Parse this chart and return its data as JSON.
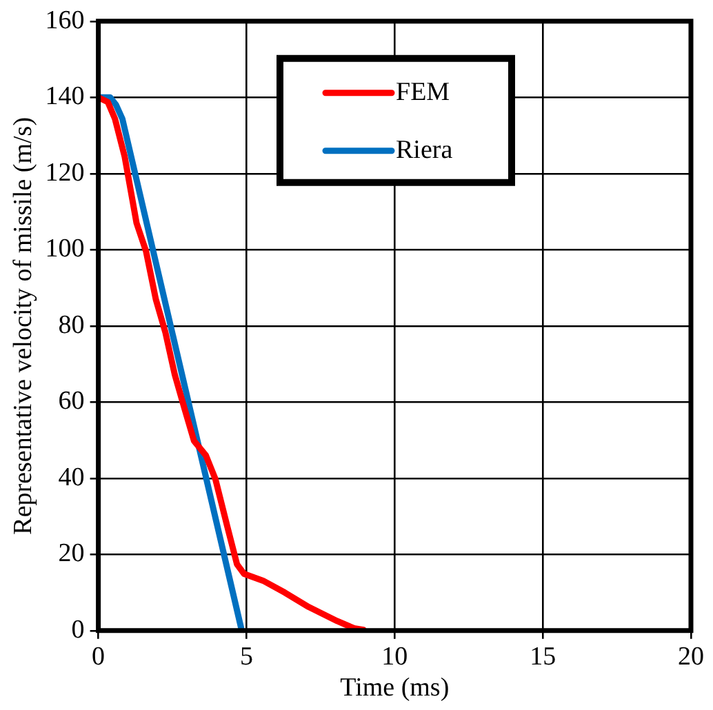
{
  "chart_data": {
    "type": "line",
    "xlabel": "Time (ms)",
    "ylabel": "Representative velocity of missile (m/s)",
    "xlim": [
      0,
      20
    ],
    "xticks": [
      0,
      5,
      10,
      15,
      20
    ],
    "ylim": [
      0,
      160
    ],
    "yticks": [
      0,
      20,
      40,
      60,
      80,
      100,
      120,
      140,
      160
    ],
    "grid": true,
    "legend": "top right",
    "marker": "none",
    "line_style": "solid",
    "series": [
      {
        "name": "FEM",
        "color": "#ff0000",
        "x": [
          0,
          0.32,
          0.56,
          0.89,
          1.29,
          1.61,
          1.94,
          2.26,
          2.58,
          2.9,
          3.23,
          3.63,
          3.95,
          4.35,
          4.68,
          4.92,
          5.56,
          6.29,
          7.1,
          8.06,
          8.63,
          8.95
        ],
        "values": [
          140,
          138.8,
          134.4,
          124.4,
          107,
          99.6,
          87,
          78.4,
          67.2,
          58.5,
          49.8,
          46,
          39.8,
          27.4,
          17.4,
          14.9,
          13.1,
          10,
          6.2,
          2.5,
          0.6,
          0.2
        ]
      },
      {
        "name": "Riera",
        "color": "#0070c0",
        "x": [
          0,
          0.4,
          0.6,
          0.81,
          4.84
        ],
        "values": [
          140,
          140,
          138,
          134.4,
          0
        ]
      }
    ]
  }
}
